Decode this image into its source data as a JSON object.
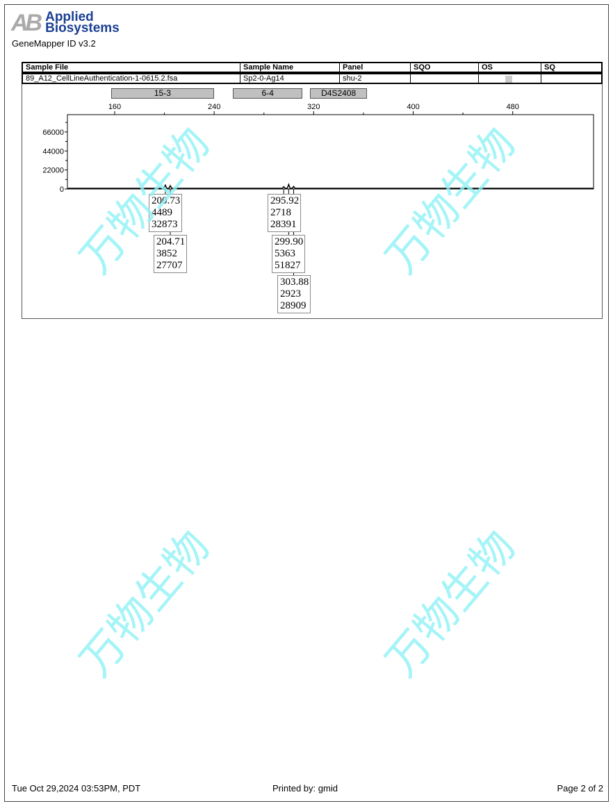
{
  "header": {
    "logo": "AB Applied Biosystems",
    "logo_line1": "Applied",
    "logo_line2": "Biosystems",
    "app": "GeneMapper ID v3.2"
  },
  "table": {
    "headers": [
      "Sample File",
      "Sample Name",
      "Panel",
      "SQO",
      "OS",
      "SQ"
    ],
    "row": [
      "89_A12_CellLineAuthentication-1-0615.2.fsa",
      "Sp2-0-Ag14",
      "shu-2",
      "",
      "",
      ""
    ]
  },
  "bins": [
    {
      "label": "15-3",
      "start": 157,
      "end": 240
    },
    {
      "label": "6-4",
      "start": 255,
      "end": 311
    },
    {
      "label": "D4S2408",
      "start": 317,
      "end": 363
    }
  ],
  "chart_data": {
    "type": "line",
    "xlim": [
      122,
      545
    ],
    "ylim": [
      0,
      86000
    ],
    "x_ticks": [
      160,
      240,
      320,
      400,
      480
    ],
    "y_ticks": [
      0,
      22000,
      44000,
      66000
    ],
    "grid": false,
    "peaks": [
      {
        "size": "200.73",
        "height": "4489",
        "area": "32873",
        "x": 200.73,
        "y": 4489
      },
      {
        "size": "204.71",
        "height": "3852",
        "area": "27707",
        "x": 204.71,
        "y": 3852
      },
      {
        "size": "295.92",
        "height": "2718",
        "area": "28391",
        "x": 295.92,
        "y": 2718
      },
      {
        "size": "299.90",
        "height": "5363",
        "area": "51827",
        "x": 299.9,
        "y": 5363
      },
      {
        "size": "303.88",
        "height": "2923",
        "area": "28909",
        "x": 303.88,
        "y": 2923
      }
    ],
    "line_color": "#000000"
  },
  "watermark": "万物生物",
  "footer": {
    "date": "Tue Oct 29,2024 03:53PM, PDT",
    "printed_by": "Printed by: gmid",
    "page": "Page 2 of 2"
  }
}
